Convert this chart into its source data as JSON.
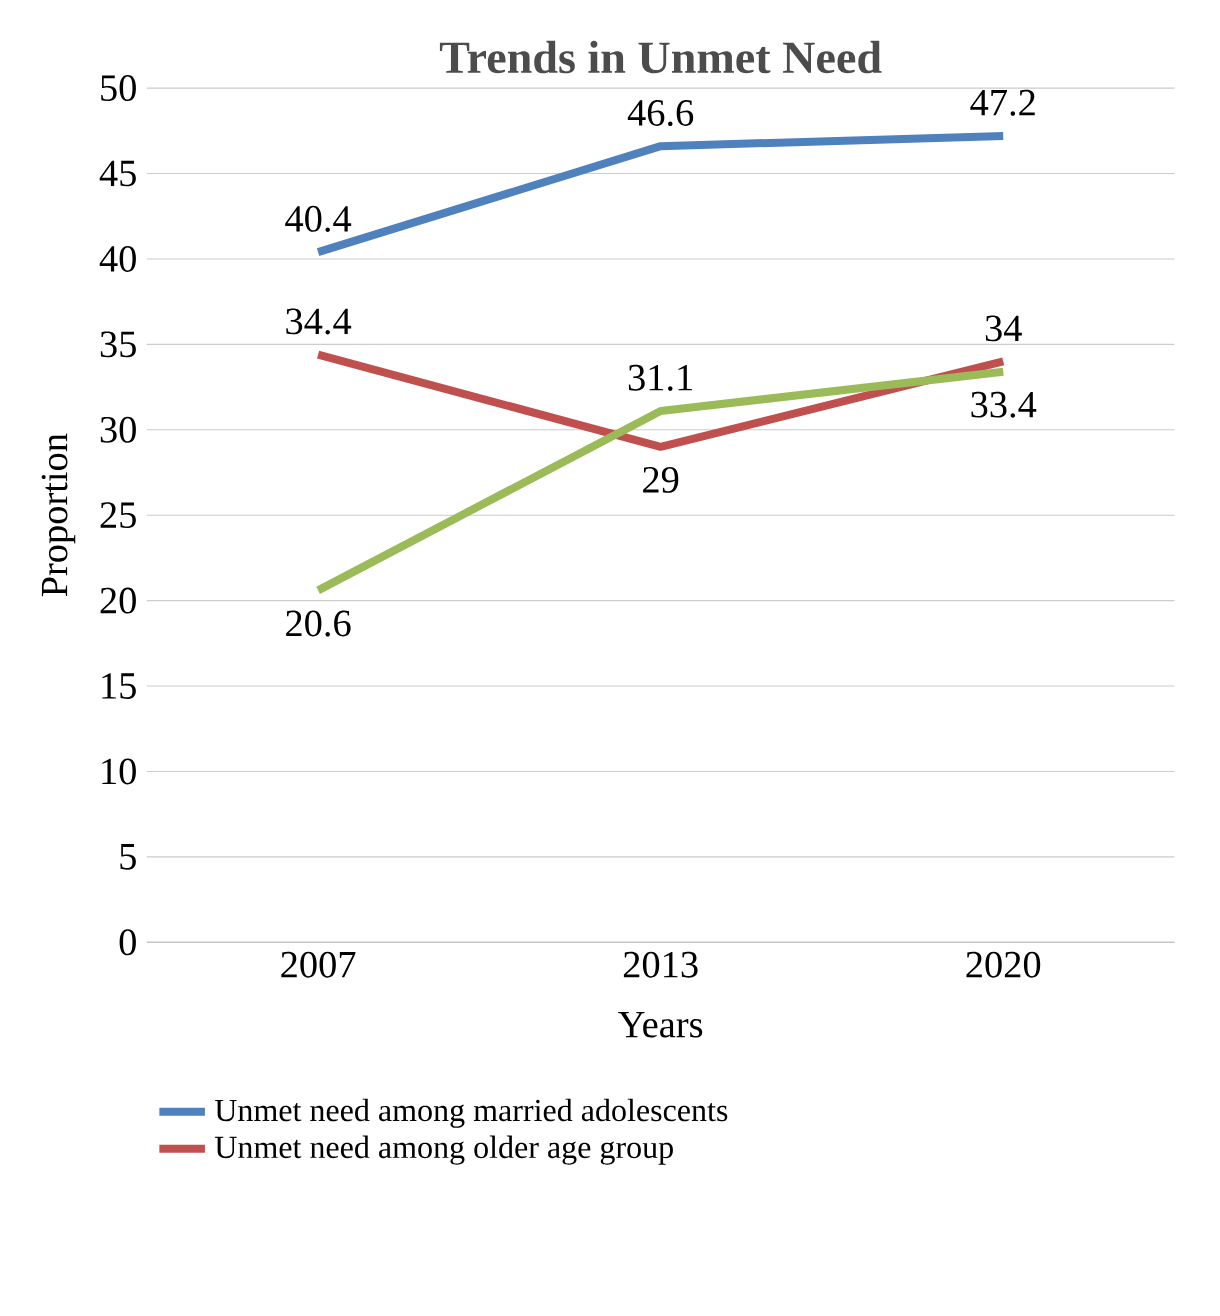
{
  "chart_data": {
    "type": "line",
    "title": "Trends in Unmet Need",
    "xlabel": "Years",
    "ylabel": "Proportion",
    "categories": [
      "2007",
      "2013",
      "2020"
    ],
    "series": [
      {
        "name": "Unmet need among married adolescents",
        "color": "#4f81bd",
        "values": [
          40.4,
          46.6,
          47.2
        ]
      },
      {
        "name": "Unmet need among older age group",
        "color": "#c0504d",
        "values": [
          34.4,
          29,
          34
        ]
      },
      {
        "color": "#9bbb59",
        "values": [
          20.6,
          31.1,
          33.4
        ]
      }
    ],
    "ylim": [
      0,
      50
    ],
    "yticks": [
      0,
      5,
      10,
      15,
      20,
      25,
      30,
      35,
      40,
      45,
      50
    ],
    "grid": "y",
    "legend": "bottom",
    "data_labels": true,
    "marker": "none",
    "line_style": "solid"
  }
}
